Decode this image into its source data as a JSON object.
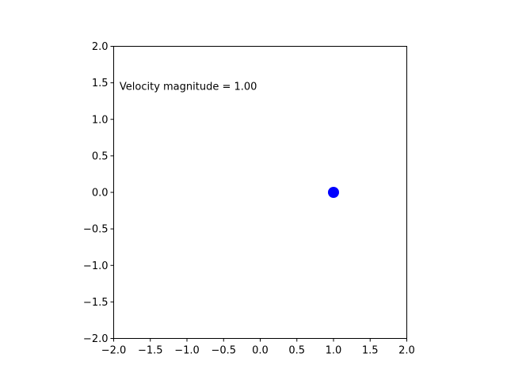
{
  "chart_data": {
    "type": "scatter",
    "xlim": [
      -2.0,
      2.0
    ],
    "ylim": [
      -2.0,
      2.0
    ],
    "x_ticks": [
      "−2.0",
      "−1.5",
      "−1.0",
      "−0.5",
      "0.0",
      "0.5",
      "1.0",
      "1.5",
      "2.0"
    ],
    "y_ticks": [
      "−2.0",
      "−1.5",
      "−1.0",
      "−0.5",
      "0.0",
      "0.5",
      "1.0",
      "1.5",
      "2.0"
    ],
    "x_tick_values": [
      -2.0,
      -1.5,
      -1.0,
      -0.5,
      0.0,
      0.5,
      1.0,
      1.5,
      2.0
    ],
    "y_tick_values": [
      -2.0,
      -1.5,
      -1.0,
      -0.5,
      0.0,
      0.5,
      1.0,
      1.5,
      2.0
    ],
    "points": [
      {
        "x": 1.0,
        "y": 0.0,
        "color": "#0000ff"
      }
    ],
    "annotation": {
      "text": "Velocity magnitude = 1.00",
      "x": -1.92,
      "y": 1.45
    },
    "grid": false,
    "title": "",
    "xlabel": "",
    "ylabel": ""
  }
}
